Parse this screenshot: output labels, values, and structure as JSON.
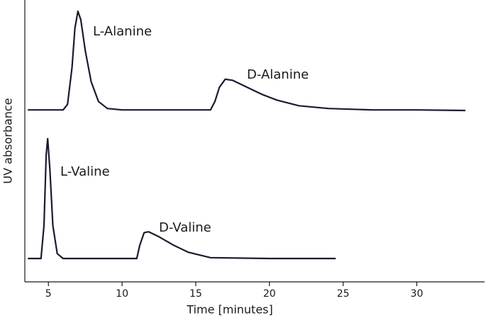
{
  "chart_data": {
    "type": "line",
    "x_label": "Time [minutes]",
    "y_label": "UV absorbance",
    "xlim": [
      3.4,
      34.6
    ],
    "ylim": [
      0,
      100
    ],
    "xticks": [
      5,
      10,
      15,
      20,
      25,
      30
    ],
    "grid": false,
    "color": "#1b1b2f",
    "annotations": [
      "L-Alanine",
      "D-Alanine",
      "L-Valine",
      "D-Valine"
    ],
    "series": [
      {
        "color": "#1b1b2f",
        "x": [
          3.6,
          6.0,
          6.3,
          6.6,
          6.8,
          7.0,
          7.2,
          7.5,
          7.9,
          8.4,
          9.0,
          10,
          16.0,
          16.3,
          16.6,
          17.0,
          17.5,
          18.5,
          19.5,
          20.5,
          22,
          24,
          27,
          30,
          33.3
        ],
        "values": [
          61,
          61,
          63,
          76,
          90,
          96,
          93,
          82,
          71,
          64,
          61.5,
          61,
          61,
          64,
          69,
          71.9,
          71.5,
          69,
          66.5,
          64.5,
          62.5,
          61.5,
          61,
          61,
          60.8
        ]
      },
      {
        "color": "#1b1b2f",
        "x": [
          3.6,
          4.5,
          4.7,
          4.85,
          4.95,
          5.1,
          5.3,
          5.6,
          6.0,
          11.0,
          11.2,
          11.5,
          11.8,
          12.5,
          13.5,
          14.5,
          16,
          20,
          24.5
        ],
        "values": [
          8.3,
          8.3,
          20,
          45,
          50.8,
          40,
          20,
          10,
          8.3,
          8.3,
          13,
          17.5,
          17.8,
          16,
          13,
          10.5,
          8.6,
          8.3,
          8.3
        ]
      }
    ]
  }
}
